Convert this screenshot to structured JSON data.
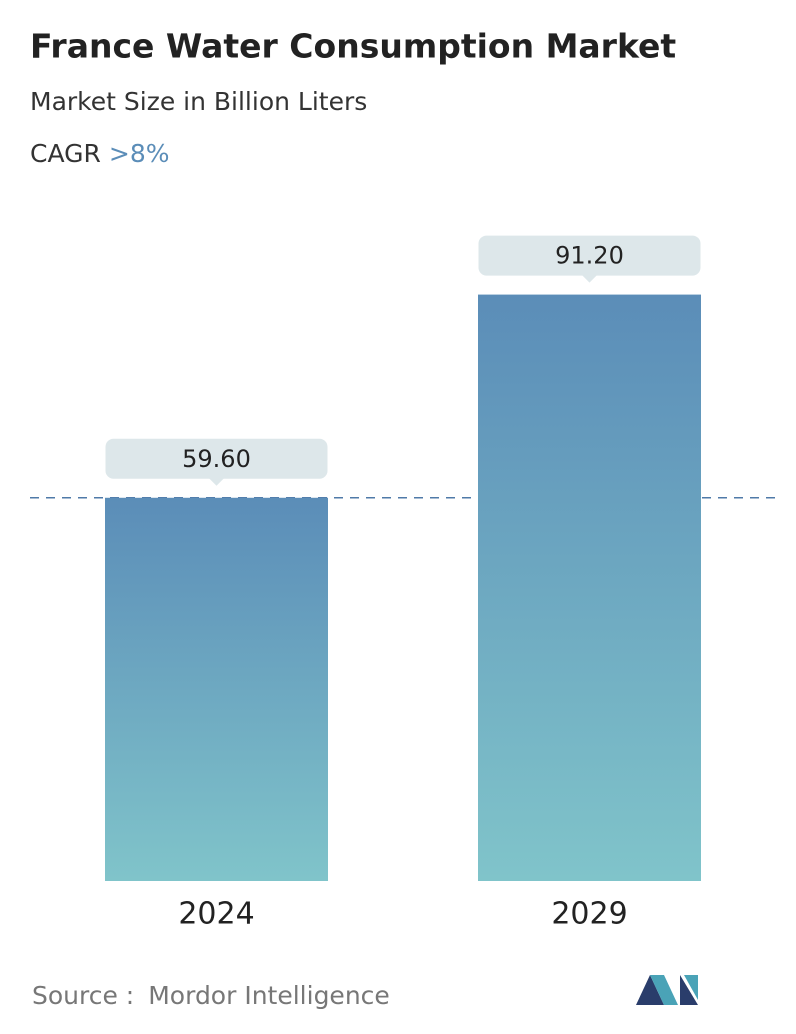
{
  "chart_data": {
    "type": "bar",
    "title": "France Water Consumption Market",
    "subtitle": "Market Size in Billion Liters",
    "cagr_label": "CAGR",
    "cagr_value": ">8%",
    "categories": [
      "2024",
      "2029"
    ],
    "values": [
      59.6,
      91.2
    ],
    "value_labels": [
      "59.60",
      "91.20"
    ],
    "ylim": [
      0,
      100
    ],
    "colors": [
      "#5b8db8",
      "#80c4ca"
    ],
    "source_label": "Source :",
    "source": "Mordor Intelligence"
  }
}
